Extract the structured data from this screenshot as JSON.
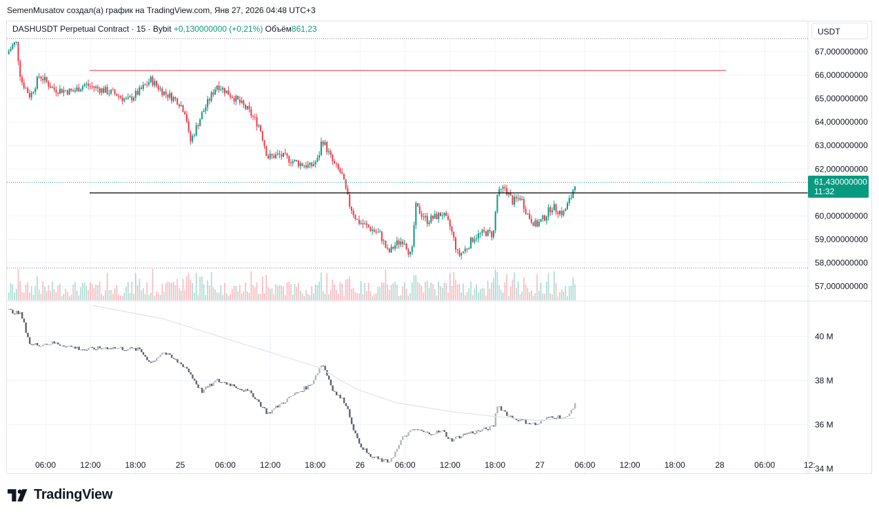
{
  "caption": "SemenMusatov создал(а) график на TradingView.com, Янв 27, 2026 04:48 UTC+3",
  "legend": {
    "symbol": "DASHUSDT Perpetual Contract · 15 · Bybit",
    "change": "+0,130000000 (+0,21%)",
    "volume_label": "Объём",
    "volume_value": "861,23"
  },
  "currency": "USDT",
  "price_tag": {
    "price": "61,430000000",
    "countdown": "11:32"
  },
  "brand": "TradingView",
  "colors": {
    "up": "#089981",
    "down": "#f23645",
    "grid": "#f0f3fa",
    "hline_red": "#f23645",
    "hline_black": "#000000"
  },
  "chart_data": [
    {
      "type": "candlestick",
      "title": "DASHUSDT Perpetual Contract · 15 · Bybit",
      "y_ticks": [
        "67,000000000",
        "66,000000000",
        "65,000000000",
        "64,000000000",
        "63,000000000",
        "62,000000000",
        "60,000000000",
        "59,000000000",
        "58,000000000",
        "57,000000000"
      ],
      "ylim": [
        56.4,
        67.5
      ],
      "x_ticks": [
        "06:00",
        "12:00",
        "18:00",
        "25",
        "06:00",
        "12:00",
        "18:00",
        "26",
        "06:00",
        "12:00",
        "18:00",
        "27",
        "06:00",
        "12:00",
        "18:00",
        "28",
        "06:00",
        "12:"
      ],
      "horizontal_lines": [
        {
          "price": 66.2,
          "color": "#f23645"
        },
        {
          "price": 60.98,
          "color": "#000000"
        }
      ],
      "last_price": 61.43,
      "close_path": [
        [
          0,
          66.9
        ],
        [
          0.8,
          67.3
        ],
        [
          1.2,
          67.4
        ],
        [
          1.8,
          65.8
        ],
        [
          3.0,
          65.1
        ],
        [
          4.2,
          66.0
        ],
        [
          6.0,
          65.4
        ],
        [
          8.5,
          65.3
        ],
        [
          10.0,
          65.6
        ],
        [
          12.0,
          65.4
        ],
        [
          14.0,
          65.2
        ],
        [
          15.5,
          64.9
        ],
        [
          17.0,
          65.3
        ],
        [
          18.5,
          65.8
        ],
        [
          20.0,
          65.3
        ],
        [
          22.0,
          64.9
        ],
        [
          23.0,
          64.4
        ],
        [
          23.5,
          63.1
        ],
        [
          25.0,
          64.3
        ],
        [
          27.0,
          65.6
        ],
        [
          29.0,
          65.1
        ],
        [
          31.0,
          64.5
        ],
        [
          32.5,
          63.8
        ],
        [
          33.5,
          62.5
        ],
        [
          35.0,
          62.6
        ],
        [
          37.0,
          62.3
        ],
        [
          39.0,
          62.1
        ],
        [
          40.0,
          62.4
        ],
        [
          40.5,
          63.3
        ],
        [
          42.0,
          62.2
        ],
        [
          43.0,
          61.8
        ],
        [
          44.0,
          60.5
        ],
        [
          45.0,
          59.8
        ],
        [
          47.0,
          59.4
        ],
        [
          48.0,
          59.2
        ],
        [
          49.0,
          58.4
        ],
        [
          50.0,
          58.8
        ],
        [
          51.0,
          59.0
        ],
        [
          52.0,
          58.2
        ],
        [
          52.5,
          60.4
        ],
        [
          54.0,
          59.8
        ],
        [
          56.0,
          60.1
        ],
        [
          57.0,
          59.5
        ],
        [
          58.0,
          58.3
        ],
        [
          59.0,
          58.6
        ],
        [
          60.0,
          59.1
        ],
        [
          61.5,
          59.3
        ],
        [
          62.5,
          59.2
        ],
        [
          63.0,
          60.9
        ],
        [
          64.0,
          61.2
        ],
        [
          65.0,
          60.6
        ],
        [
          66.0,
          60.8
        ],
        [
          67.0,
          60.0
        ],
        [
          68.0,
          59.6
        ],
        [
          69.0,
          59.9
        ],
        [
          70.0,
          60.4
        ],
        [
          71.5,
          60.1
        ],
        [
          72.5,
          60.8
        ],
        [
          73.0,
          61.43
        ]
      ]
    },
    {
      "type": "line",
      "title": "",
      "y_ticks": [
        "40 M",
        "38 M",
        "36 M",
        "34 M"
      ],
      "ylim": [
        33.8,
        41.6
      ],
      "close_path": [
        [
          0,
          41.2
        ],
        [
          1.8,
          41.0
        ],
        [
          3.0,
          39.6
        ],
        [
          6.0,
          39.7
        ],
        [
          10.0,
          39.4
        ],
        [
          13.0,
          39.5
        ],
        [
          17.0,
          39.4
        ],
        [
          18.5,
          38.8
        ],
        [
          20.0,
          39.3
        ],
        [
          23.0,
          38.6
        ],
        [
          25.0,
          37.5
        ],
        [
          27.0,
          38.0
        ],
        [
          29.0,
          37.8
        ],
        [
          31.5,
          37.4
        ],
        [
          33.5,
          36.5
        ],
        [
          35.0,
          36.9
        ],
        [
          37.0,
          37.4
        ],
        [
          39.0,
          37.8
        ],
        [
          40.5,
          38.8
        ],
        [
          42.0,
          37.5
        ],
        [
          43.5,
          37.0
        ],
        [
          45.0,
          35.3
        ],
        [
          46.5,
          34.6
        ],
        [
          48.0,
          34.4
        ],
        [
          49.0,
          34.3
        ],
        [
          50.0,
          34.8
        ],
        [
          51.0,
          35.5
        ],
        [
          52.5,
          35.8
        ],
        [
          54.0,
          35.6
        ],
        [
          56.0,
          35.7
        ],
        [
          57.0,
          35.3
        ],
        [
          59.0,
          35.6
        ],
        [
          60.5,
          35.7
        ],
        [
          62.5,
          35.9
        ],
        [
          63.0,
          36.9
        ],
        [
          64.5,
          36.4
        ],
        [
          66.0,
          36.2
        ],
        [
          68.0,
          36.0
        ],
        [
          70.0,
          36.4
        ],
        [
          72.0,
          36.3
        ],
        [
          73.0,
          37.0
        ]
      ],
      "moving_average": [
        [
          11,
          41.4
        ],
        [
          20,
          40.8
        ],
        [
          30,
          39.7
        ],
        [
          40,
          38.6
        ],
        [
          45,
          37.6
        ],
        [
          50,
          37.0
        ],
        [
          57,
          36.6
        ],
        [
          62,
          36.4
        ],
        [
          68,
          36.2
        ],
        [
          73,
          36.3
        ]
      ]
    }
  ]
}
